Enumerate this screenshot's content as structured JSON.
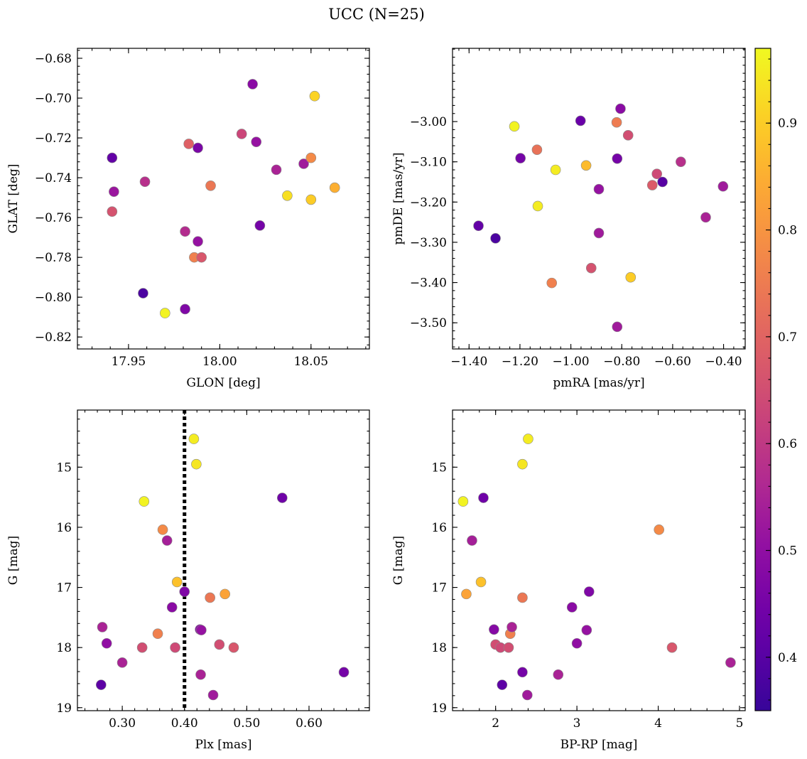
{
  "figure": {
    "title": "UCC (N=25)"
  },
  "colorbar": {
    "colormap": "plasma",
    "range": [
      0.35,
      0.97
    ],
    "ticks": [
      0.4,
      0.5,
      0.6,
      0.7,
      0.8,
      0.9
    ]
  },
  "chart_data": [
    {
      "type": "scatter",
      "xlabel": "GLON [deg]",
      "ylabel": "GLAT [deg]",
      "xlim": [
        17.922,
        18.082
      ],
      "ylim": [
        -0.826,
        -0.675
      ],
      "xticks": [
        17.95,
        18.0,
        18.05
      ],
      "yticks": [
        -0.82,
        -0.8,
        -0.78,
        -0.76,
        -0.74,
        -0.72,
        -0.7,
        -0.68
      ],
      "y_inverted": false,
      "points": [
        {
          "x": 17.941,
          "y": -0.73,
          "c": 0.42
        },
        {
          "x": 17.942,
          "y": -0.747,
          "c": 0.52
        },
        {
          "x": 17.941,
          "y": -0.757,
          "c": 0.66
        },
        {
          "x": 17.958,
          "y": -0.798,
          "c": 0.38
        },
        {
          "x": 17.959,
          "y": -0.742,
          "c": 0.58
        },
        {
          "x": 17.97,
          "y": -0.808,
          "c": 0.96
        },
        {
          "x": 17.981,
          "y": -0.767,
          "c": 0.57
        },
        {
          "x": 17.981,
          "y": -0.806,
          "c": 0.47
        },
        {
          "x": 17.983,
          "y": -0.723,
          "c": 0.69
        },
        {
          "x": 17.986,
          "y": -0.78,
          "c": 0.76
        },
        {
          "x": 17.988,
          "y": -0.725,
          "c": 0.46
        },
        {
          "x": 17.988,
          "y": -0.772,
          "c": 0.51
        },
        {
          "x": 17.99,
          "y": -0.78,
          "c": 0.67
        },
        {
          "x": 17.995,
          "y": -0.744,
          "c": 0.74
        },
        {
          "x": 18.012,
          "y": -0.718,
          "c": 0.63
        },
        {
          "x": 18.018,
          "y": -0.693,
          "c": 0.49
        },
        {
          "x": 18.02,
          "y": -0.722,
          "c": 0.51
        },
        {
          "x": 18.022,
          "y": -0.764,
          "c": 0.45
        },
        {
          "x": 18.031,
          "y": -0.736,
          "c": 0.55
        },
        {
          "x": 18.037,
          "y": -0.749,
          "c": 0.93
        },
        {
          "x": 18.046,
          "y": -0.733,
          "c": 0.53
        },
        {
          "x": 18.05,
          "y": -0.73,
          "c": 0.78
        },
        {
          "x": 18.05,
          "y": -0.751,
          "c": 0.9
        },
        {
          "x": 18.052,
          "y": -0.699,
          "c": 0.91
        },
        {
          "x": 18.063,
          "y": -0.745,
          "c": 0.85
        }
      ]
    },
    {
      "type": "scatter",
      "xlabel": "pmRA [mas/yr]",
      "ylabel": "pmDE [mas/yr]",
      "xlim": [
        -1.465,
        -0.315
      ],
      "ylim": [
        -3.565,
        -2.818
      ],
      "xticks": [
        -1.4,
        -1.2,
        -1.0,
        -0.8,
        -0.6,
        -0.4
      ],
      "yticks": [
        -3.5,
        -3.4,
        -3.3,
        -3.2,
        -3.1,
        -3.0
      ],
      "y_inverted": false,
      "points": [
        {
          "x": -1.363,
          "y": -3.259,
          "c": 0.42
        },
        {
          "x": -1.296,
          "y": -3.29,
          "c": 0.38
        },
        {
          "x": -1.222,
          "y": -3.012,
          "c": 0.96
        },
        {
          "x": -1.198,
          "y": -3.091,
          "c": 0.45
        },
        {
          "x": -1.133,
          "y": -3.07,
          "c": 0.73
        },
        {
          "x": -1.13,
          "y": -3.21,
          "c": 0.95
        },
        {
          "x": -1.075,
          "y": -3.401,
          "c": 0.76
        },
        {
          "x": -1.06,
          "y": -3.12,
          "c": 0.95
        },
        {
          "x": -0.962,
          "y": -2.998,
          "c": 0.43
        },
        {
          "x": -0.94,
          "y": -3.109,
          "c": 0.87
        },
        {
          "x": -0.92,
          "y": -3.364,
          "c": 0.66
        },
        {
          "x": -0.89,
          "y": -3.168,
          "c": 0.51
        },
        {
          "x": -0.89,
          "y": -3.277,
          "c": 0.53
        },
        {
          "x": -0.82,
          "y": -3.002,
          "c": 0.75
        },
        {
          "x": -0.818,
          "y": -3.092,
          "c": 0.45
        },
        {
          "x": -0.818,
          "y": -3.51,
          "c": 0.53
        },
        {
          "x": -0.805,
          "y": -2.968,
          "c": 0.49
        },
        {
          "x": -0.775,
          "y": -3.034,
          "c": 0.65
        },
        {
          "x": -0.765,
          "y": -3.387,
          "c": 0.9
        },
        {
          "x": -0.68,
          "y": -3.158,
          "c": 0.68
        },
        {
          "x": -0.662,
          "y": -3.13,
          "c": 0.64
        },
        {
          "x": -0.64,
          "y": -3.15,
          "c": 0.4
        },
        {
          "x": -0.568,
          "y": -3.1,
          "c": 0.58
        },
        {
          "x": -0.47,
          "y": -3.238,
          "c": 0.55
        },
        {
          "x": -0.402,
          "y": -3.161,
          "c": 0.53
        }
      ]
    },
    {
      "type": "scatter",
      "xlabel": "Plx [mas]",
      "ylabel": "G [mag]",
      "xlim": [
        0.228,
        0.697
      ],
      "ylim": [
        14.05,
        19.05
      ],
      "xticks": [
        0.3,
        0.4,
        0.5,
        0.6
      ],
      "yticks": [
        15,
        16,
        17,
        18,
        19
      ],
      "y_inverted": true,
      "vline": {
        "x": 0.4,
        "style": "dotted"
      },
      "points": [
        {
          "x": 0.266,
          "y": 18.62,
          "c": 0.41
        },
        {
          "x": 0.268,
          "y": 17.66,
          "c": 0.55
        },
        {
          "x": 0.275,
          "y": 17.93,
          "c": 0.5
        },
        {
          "x": 0.3,
          "y": 18.25,
          "c": 0.55
        },
        {
          "x": 0.332,
          "y": 18.0,
          "c": 0.65
        },
        {
          "x": 0.335,
          "y": 15.57,
          "c": 0.96
        },
        {
          "x": 0.357,
          "y": 17.77,
          "c": 0.76
        },
        {
          "x": 0.365,
          "y": 16.04,
          "c": 0.78
        },
        {
          "x": 0.372,
          "y": 16.22,
          "c": 0.54
        },
        {
          "x": 0.38,
          "y": 17.33,
          "c": 0.49
        },
        {
          "x": 0.385,
          "y": 18.0,
          "c": 0.64
        },
        {
          "x": 0.388,
          "y": 16.91,
          "c": 0.88
        },
        {
          "x": 0.4,
          "y": 17.07,
          "c": 0.47
        },
        {
          "x": 0.415,
          "y": 14.53,
          "c": 0.95
        },
        {
          "x": 0.419,
          "y": 14.95,
          "c": 0.94
        },
        {
          "x": 0.425,
          "y": 17.7,
          "c": 0.48
        },
        {
          "x": 0.427,
          "y": 17.71,
          "c": 0.51
        },
        {
          "x": 0.426,
          "y": 18.45,
          "c": 0.55
        },
        {
          "x": 0.441,
          "y": 17.17,
          "c": 0.74
        },
        {
          "x": 0.446,
          "y": 18.79,
          "c": 0.53
        },
        {
          "x": 0.456,
          "y": 17.95,
          "c": 0.65
        },
        {
          "x": 0.465,
          "y": 17.11,
          "c": 0.83
        },
        {
          "x": 0.479,
          "y": 18.0,
          "c": 0.67
        },
        {
          "x": 0.557,
          "y": 15.51,
          "c": 0.44
        },
        {
          "x": 0.656,
          "y": 18.41,
          "c": 0.45
        }
      ]
    },
    {
      "type": "scatter",
      "xlabel": "BP-RP [mag]",
      "ylabel": "G [mag]",
      "xlim": [
        1.47,
        5.07
      ],
      "ylim": [
        14.05,
        19.05
      ],
      "xticks": [
        2,
        3,
        4,
        5
      ],
      "yticks": [
        15,
        16,
        17,
        18,
        19
      ],
      "y_inverted": true,
      "points": [
        {
          "x": 1.6,
          "y": 15.57,
          "c": 0.96
        },
        {
          "x": 1.64,
          "y": 17.11,
          "c": 0.83
        },
        {
          "x": 1.71,
          "y": 16.22,
          "c": 0.54
        },
        {
          "x": 1.82,
          "y": 16.91,
          "c": 0.88
        },
        {
          "x": 1.85,
          "y": 15.51,
          "c": 0.44
        },
        {
          "x": 1.98,
          "y": 17.7,
          "c": 0.48
        },
        {
          "x": 2.0,
          "y": 17.95,
          "c": 0.65
        },
        {
          "x": 2.06,
          "y": 18.0,
          "c": 0.64
        },
        {
          "x": 2.08,
          "y": 18.62,
          "c": 0.41
        },
        {
          "x": 2.16,
          "y": 18.0,
          "c": 0.65
        },
        {
          "x": 2.18,
          "y": 17.77,
          "c": 0.76
        },
        {
          "x": 2.2,
          "y": 17.66,
          "c": 0.55
        },
        {
          "x": 2.33,
          "y": 14.95,
          "c": 0.94
        },
        {
          "x": 2.33,
          "y": 17.17,
          "c": 0.74
        },
        {
          "x": 2.33,
          "y": 18.41,
          "c": 0.45
        },
        {
          "x": 2.39,
          "y": 18.79,
          "c": 0.53
        },
        {
          "x": 2.4,
          "y": 14.53,
          "c": 0.95
        },
        {
          "x": 2.77,
          "y": 18.45,
          "c": 0.55
        },
        {
          "x": 2.94,
          "y": 17.33,
          "c": 0.49
        },
        {
          "x": 3.0,
          "y": 17.93,
          "c": 0.5
        },
        {
          "x": 3.12,
          "y": 17.71,
          "c": 0.51
        },
        {
          "x": 3.15,
          "y": 17.07,
          "c": 0.47
        },
        {
          "x": 4.01,
          "y": 16.04,
          "c": 0.78
        },
        {
          "x": 4.17,
          "y": 18.0,
          "c": 0.67
        },
        {
          "x": 4.89,
          "y": 18.25,
          "c": 0.55
        }
      ]
    }
  ]
}
